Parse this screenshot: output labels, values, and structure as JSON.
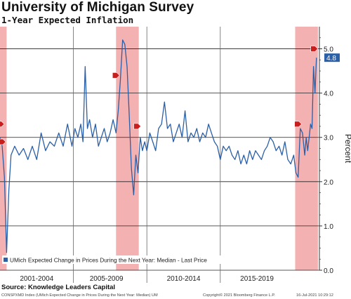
{
  "title": "University of Michigan Survey",
  "subtitle": "1-Year Expected Inflation",
  "source": "Source: Knowledge Leaders Capital",
  "footer": {
    "left": "CONSPXMD Index (UMich Expected Change in Prices During the Next Year: Median) UM",
    "middle": "Copyright© 2021 Bloomberg Finance L.P.",
    "right": "16-Jul-2021 10:29:12"
  },
  "colors": {
    "line": "#2b5fa6",
    "recession": "#f2a3a3",
    "marker": "#c81e1e",
    "last_label_bg": "#2b5fa6",
    "grid": "#222222"
  },
  "chart_data": {
    "type": "line",
    "ylabel": "Percent",
    "ylim": [
      0,
      5.5
    ],
    "yticks": [
      0.0,
      1.0,
      2.0,
      3.0,
      4.0,
      5.0
    ],
    "ytick_labels": [
      "0.0",
      "1.0",
      "2.0",
      "3.0",
      "4.0",
      "5.0"
    ],
    "xlim": [
      2000.0,
      2021.75
    ],
    "period_labels": [
      {
        "label": "2001-2004",
        "x": 2002.5
      },
      {
        "label": "2005-2009",
        "x": 2007.25
      },
      {
        "label": "2010-2014",
        "x": 2012.5
      },
      {
        "label": "2015-2019",
        "x": 2017.5
      }
    ],
    "period_dividers": [
      2005.0,
      2010.0,
      2015.0
    ],
    "legend": "UMich Expected Change in Prices During the Next Year: Median - Last Price",
    "legend_position": "bottom-left",
    "last_value": 4.8,
    "last_value_label": "4.8",
    "recession_bands": [
      [
        2000.0,
        2000.45
      ],
      [
        2007.9,
        2009.45
      ],
      [
        2020.1,
        2021.65
      ]
    ],
    "markers": [
      {
        "x": 2000.05,
        "y": 3.3
      },
      {
        "x": 2000.15,
        "y": 2.9
      },
      {
        "x": 2007.9,
        "y": 4.4
      },
      {
        "x": 2009.35,
        "y": 3.25
      },
      {
        "x": 2020.3,
        "y": 3.3
      },
      {
        "x": 2021.4,
        "y": 5.0
      }
    ],
    "series": [
      {
        "values": [
          [
            2000.0,
            3.0
          ],
          [
            2000.15,
            2.8
          ],
          [
            2000.3,
            2.1
          ],
          [
            2000.45,
            0.4
          ],
          [
            2000.6,
            1.8
          ],
          [
            2000.75,
            2.6
          ],
          [
            2001.0,
            2.8
          ],
          [
            2001.3,
            2.6
          ],
          [
            2001.6,
            2.75
          ],
          [
            2001.9,
            2.5
          ],
          [
            2002.2,
            2.8
          ],
          [
            2002.5,
            2.5
          ],
          [
            2002.8,
            3.1
          ],
          [
            2003.1,
            2.7
          ],
          [
            2003.4,
            2.9
          ],
          [
            2003.7,
            2.8
          ],
          [
            2004.0,
            3.1
          ],
          [
            2004.3,
            2.8
          ],
          [
            2004.6,
            3.3
          ],
          [
            2004.9,
            2.8
          ],
          [
            2005.1,
            3.2
          ],
          [
            2005.3,
            3.0
          ],
          [
            2005.5,
            3.3
          ],
          [
            2005.65,
            2.9
          ],
          [
            2005.8,
            4.6
          ],
          [
            2005.95,
            3.2
          ],
          [
            2006.1,
            3.4
          ],
          [
            2006.3,
            3.0
          ],
          [
            2006.5,
            3.3
          ],
          [
            2006.7,
            2.8
          ],
          [
            2006.9,
            3.0
          ],
          [
            2007.1,
            3.2
          ],
          [
            2007.3,
            2.9
          ],
          [
            2007.5,
            3.1
          ],
          [
            2007.7,
            3.4
          ],
          [
            2007.9,
            3.1
          ],
          [
            2008.05,
            3.6
          ],
          [
            2008.2,
            4.3
          ],
          [
            2008.35,
            5.2
          ],
          [
            2008.5,
            5.1
          ],
          [
            2008.65,
            4.6
          ],
          [
            2008.8,
            3.5
          ],
          [
            2008.95,
            2.3
          ],
          [
            2009.1,
            1.7
          ],
          [
            2009.25,
            2.6
          ],
          [
            2009.4,
            2.2
          ],
          [
            2009.55,
            3.0
          ],
          [
            2009.7,
            2.7
          ],
          [
            2009.85,
            2.9
          ],
          [
            2010.0,
            2.7
          ],
          [
            2010.2,
            3.1
          ],
          [
            2010.4,
            2.9
          ],
          [
            2010.6,
            2.7
          ],
          [
            2010.8,
            3.2
          ],
          [
            2011.0,
            3.3
          ],
          [
            2011.2,
            3.8
          ],
          [
            2011.4,
            3.2
          ],
          [
            2011.6,
            3.3
          ],
          [
            2011.8,
            2.9
          ],
          [
            2012.0,
            3.1
          ],
          [
            2012.2,
            3.3
          ],
          [
            2012.4,
            3.0
          ],
          [
            2012.6,
            3.6
          ],
          [
            2012.8,
            2.9
          ],
          [
            2013.0,
            3.1
          ],
          [
            2013.2,
            3.0
          ],
          [
            2013.4,
            3.2
          ],
          [
            2013.6,
            2.9
          ],
          [
            2013.8,
            3.1
          ],
          [
            2014.0,
            3.0
          ],
          [
            2014.2,
            3.3
          ],
          [
            2014.4,
            3.1
          ],
          [
            2014.6,
            2.9
          ],
          [
            2014.8,
            2.8
          ],
          [
            2015.0,
            2.5
          ],
          [
            2015.2,
            2.8
          ],
          [
            2015.4,
            2.7
          ],
          [
            2015.6,
            2.8
          ],
          [
            2015.8,
            2.6
          ],
          [
            2016.0,
            2.5
          ],
          [
            2016.2,
            2.7
          ],
          [
            2016.4,
            2.4
          ],
          [
            2016.6,
            2.6
          ],
          [
            2016.8,
            2.4
          ],
          [
            2017.0,
            2.7
          ],
          [
            2017.2,
            2.5
          ],
          [
            2017.4,
            2.7
          ],
          [
            2017.6,
            2.6
          ],
          [
            2017.8,
            2.5
          ],
          [
            2018.0,
            2.7
          ],
          [
            2018.2,
            2.8
          ],
          [
            2018.4,
            3.0
          ],
          [
            2018.6,
            2.9
          ],
          [
            2018.8,
            2.7
          ],
          [
            2019.0,
            2.8
          ],
          [
            2019.2,
            2.6
          ],
          [
            2019.4,
            2.9
          ],
          [
            2019.6,
            2.5
          ],
          [
            2019.8,
            2.4
          ],
          [
            2020.0,
            2.6
          ],
          [
            2020.15,
            2.2
          ],
          [
            2020.3,
            2.1
          ],
          [
            2020.45,
            3.2
          ],
          [
            2020.6,
            3.1
          ],
          [
            2020.75,
            2.6
          ],
          [
            2020.85,
            3.0
          ],
          [
            2020.95,
            2.7
          ],
          [
            2021.05,
            3.0
          ],
          [
            2021.15,
            3.3
          ],
          [
            2021.25,
            3.2
          ],
          [
            2021.35,
            4.6
          ],
          [
            2021.45,
            4.0
          ],
          [
            2021.55,
            4.8
          ]
        ]
      }
    ]
  }
}
